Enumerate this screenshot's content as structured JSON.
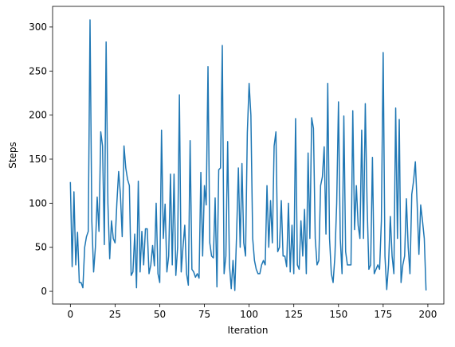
{
  "chart_data": {
    "type": "line",
    "xlabel": "Iteration",
    "ylabel": "Steps",
    "x": [
      0,
      1,
      2,
      3,
      4,
      5,
      6,
      7,
      8,
      9,
      10,
      11,
      12,
      13,
      14,
      15,
      16,
      17,
      18,
      19,
      20,
      21,
      22,
      23,
      24,
      25,
      26,
      27,
      28,
      29,
      30,
      31,
      32,
      33,
      34,
      35,
      36,
      37,
      38,
      39,
      40,
      41,
      42,
      43,
      44,
      45,
      46,
      47,
      48,
      49,
      50,
      51,
      52,
      53,
      54,
      55,
      56,
      57,
      58,
      59,
      60,
      61,
      62,
      63,
      64,
      65,
      66,
      67,
      68,
      69,
      70,
      71,
      72,
      73,
      74,
      75,
      76,
      77,
      78,
      79,
      80,
      81,
      82,
      83,
      84,
      85,
      86,
      87,
      88,
      89,
      90,
      91,
      92,
      93,
      94,
      95,
      96,
      97,
      98,
      99,
      100,
      101,
      102,
      103,
      104,
      105,
      106,
      107,
      108,
      109,
      110,
      111,
      112,
      113,
      114,
      115,
      116,
      117,
      118,
      119,
      120,
      121,
      122,
      123,
      124,
      125,
      126,
      127,
      128,
      129,
      130,
      131,
      132,
      133,
      134,
      135,
      136,
      137,
      138,
      139,
      140,
      141,
      142,
      143,
      144,
      145,
      146,
      147,
      148,
      149,
      150,
      151,
      152,
      153,
      154,
      155,
      156,
      157,
      158,
      159,
      160,
      161,
      162,
      163,
      164,
      165,
      166,
      167,
      168,
      169,
      170,
      171,
      172,
      173,
      174,
      175,
      176,
      177,
      178,
      179,
      180,
      181,
      182,
      183,
      184,
      185,
      186,
      187,
      188,
      189,
      190,
      191,
      192,
      193,
      194,
      195,
      196,
      197,
      198,
      199
    ],
    "series": [
      {
        "color": "#1f77b4",
        "values": [
          124,
          28,
          113,
          30,
          67,
          10,
          10,
          4,
          50,
          62,
          68,
          308,
          80,
          22,
          50,
          107,
          68,
          181,
          165,
          53,
          283,
          100,
          37,
          80,
          60,
          55,
          100,
          136,
          110,
          62,
          165,
          140,
          127,
          120,
          18,
          22,
          65,
          4,
          125,
          22,
          68,
          30,
          71,
          71,
          20,
          30,
          52,
          29,
          100,
          20,
          10,
          183,
          60,
          99,
          22,
          40,
          133,
          30,
          133,
          18,
          50,
          223,
          22,
          50,
          75,
          20,
          7,
          171,
          25,
          22,
          16,
          20,
          15,
          135,
          40,
          120,
          98,
          255,
          55,
          40,
          38,
          106,
          5,
          138,
          140,
          279,
          20,
          40,
          170,
          30,
          3,
          35,
          1,
          65,
          140,
          50,
          145,
          55,
          40,
          180,
          236,
          200,
          60,
          35,
          25,
          20,
          20,
          30,
          35,
          30,
          120,
          50,
          103,
          55,
          165,
          181,
          45,
          50,
          103,
          40,
          40,
          28,
          100,
          22,
          75,
          20,
          196,
          30,
          25,
          80,
          40,
          93,
          20,
          157,
          60,
          197,
          185,
          60,
          30,
          35,
          120,
          130,
          164,
          65,
          236,
          60,
          20,
          10,
          40,
          100,
          215,
          60,
          20,
          199,
          45,
          30,
          30,
          30,
          205,
          70,
          120,
          75,
          60,
          183,
          60,
          213,
          100,
          25,
          30,
          152,
          20,
          25,
          30,
          25,
          80,
          271,
          40,
          2,
          30,
          85,
          40,
          20,
          208,
          60,
          195,
          10,
          30,
          40,
          105,
          50,
          20,
          110,
          125,
          147,
          100,
          42,
          98,
          80,
          60,
          1
        ]
      }
    ],
    "xlim": [
      -9.95,
      208.95
    ],
    "ylim": [
      -14.4,
      323.4
    ],
    "xticks": [
      0,
      25,
      50,
      75,
      100,
      125,
      150,
      175,
      200
    ],
    "yticks": [
      0,
      50,
      100,
      150,
      200,
      250,
      300
    ]
  }
}
